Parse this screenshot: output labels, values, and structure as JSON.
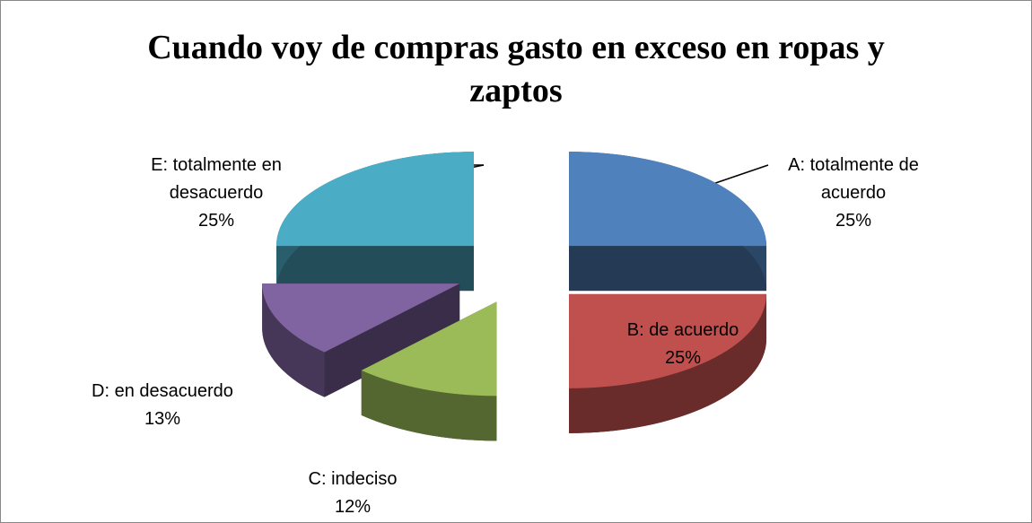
{
  "chart_data": {
    "type": "pie3d",
    "title": "Cuando voy de compras gasto en exceso en ropas y zaptos",
    "categories": [
      "A: totalmente de acuerdo",
      "B: de acuerdo",
      "C: indeciso",
      "D: en desacuerdo",
      "E: totalmente en desacuerdo"
    ],
    "values": [
      25,
      25,
      12,
      13,
      25
    ],
    "value_labels": [
      "25%",
      "25%",
      "12%",
      "13%",
      "25%"
    ],
    "colors": [
      "#4f81bd",
      "#c0504d",
      "#9bbb59",
      "#8064a2",
      "#4bacc6"
    ]
  }
}
